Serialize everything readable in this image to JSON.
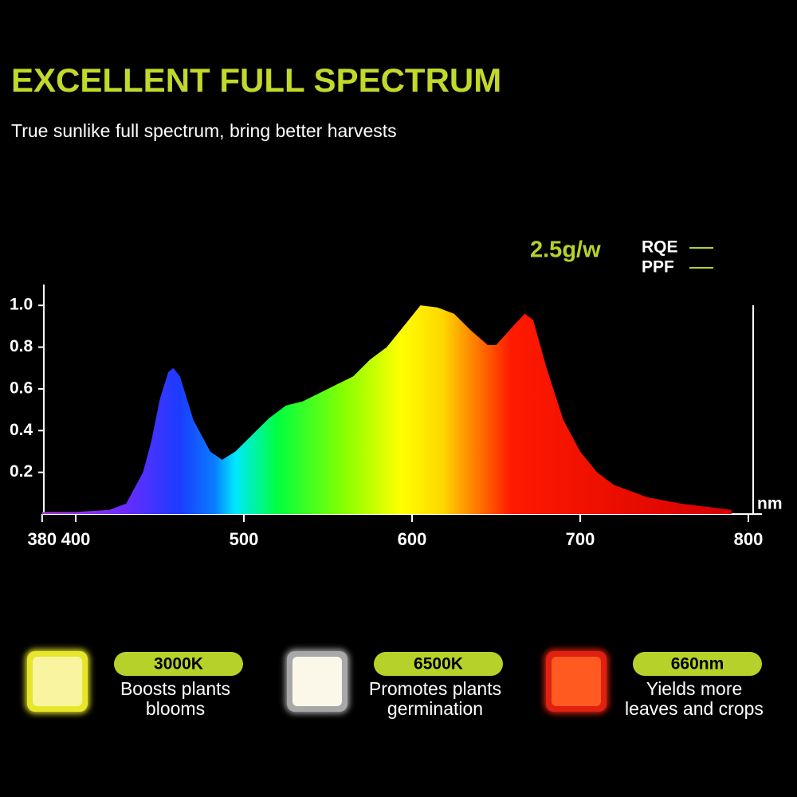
{
  "header": {
    "title": "EXCELLENT FULL SPECTRUM",
    "subtitle": "True sunlike full spectrum, bring better harvests"
  },
  "chart_data": {
    "type": "area",
    "annotation": "2.5g/w",
    "legend_items": [
      "RQE",
      "PPF"
    ],
    "legend_color": "#b6d12a",
    "x_label": "nm",
    "x": [
      380,
      400,
      420,
      430,
      440,
      445,
      450,
      455,
      458,
      462,
      470,
      480,
      487,
      495,
      505,
      515,
      525,
      535,
      545,
      555,
      565,
      575,
      585,
      595,
      605,
      615,
      625,
      635,
      645,
      650,
      660,
      667,
      672,
      680,
      690,
      700,
      710,
      720,
      740,
      760,
      790
    ],
    "values": [
      0.01,
      0.01,
      0.02,
      0.05,
      0.2,
      0.35,
      0.55,
      0.68,
      0.7,
      0.66,
      0.45,
      0.3,
      0.26,
      0.3,
      0.38,
      0.46,
      0.52,
      0.54,
      0.58,
      0.62,
      0.66,
      0.74,
      0.8,
      0.9,
      1.0,
      0.99,
      0.96,
      0.88,
      0.81,
      0.81,
      0.9,
      0.96,
      0.93,
      0.7,
      0.45,
      0.3,
      0.2,
      0.14,
      0.08,
      0.05,
      0.02
    ],
    "xlim": [
      380,
      810
    ],
    "ylim": [
      0,
      1.1
    ],
    "xticks": [
      380,
      400,
      500,
      600,
      700,
      800
    ],
    "yticks": [
      0.2,
      0.4,
      0.6,
      0.8,
      {
        "value": 1,
        "label": "1.0"
      }
    ]
  },
  "features": [
    {
      "badge": "3000K",
      "description": [
        "Boosts plants",
        "blooms"
      ]
    },
    {
      "badge": "6500K",
      "description": [
        "Promotes plants",
        "germination"
      ]
    },
    {
      "badge": "660nm",
      "description": [
        "Yields more",
        "leaves and crops"
      ]
    }
  ]
}
